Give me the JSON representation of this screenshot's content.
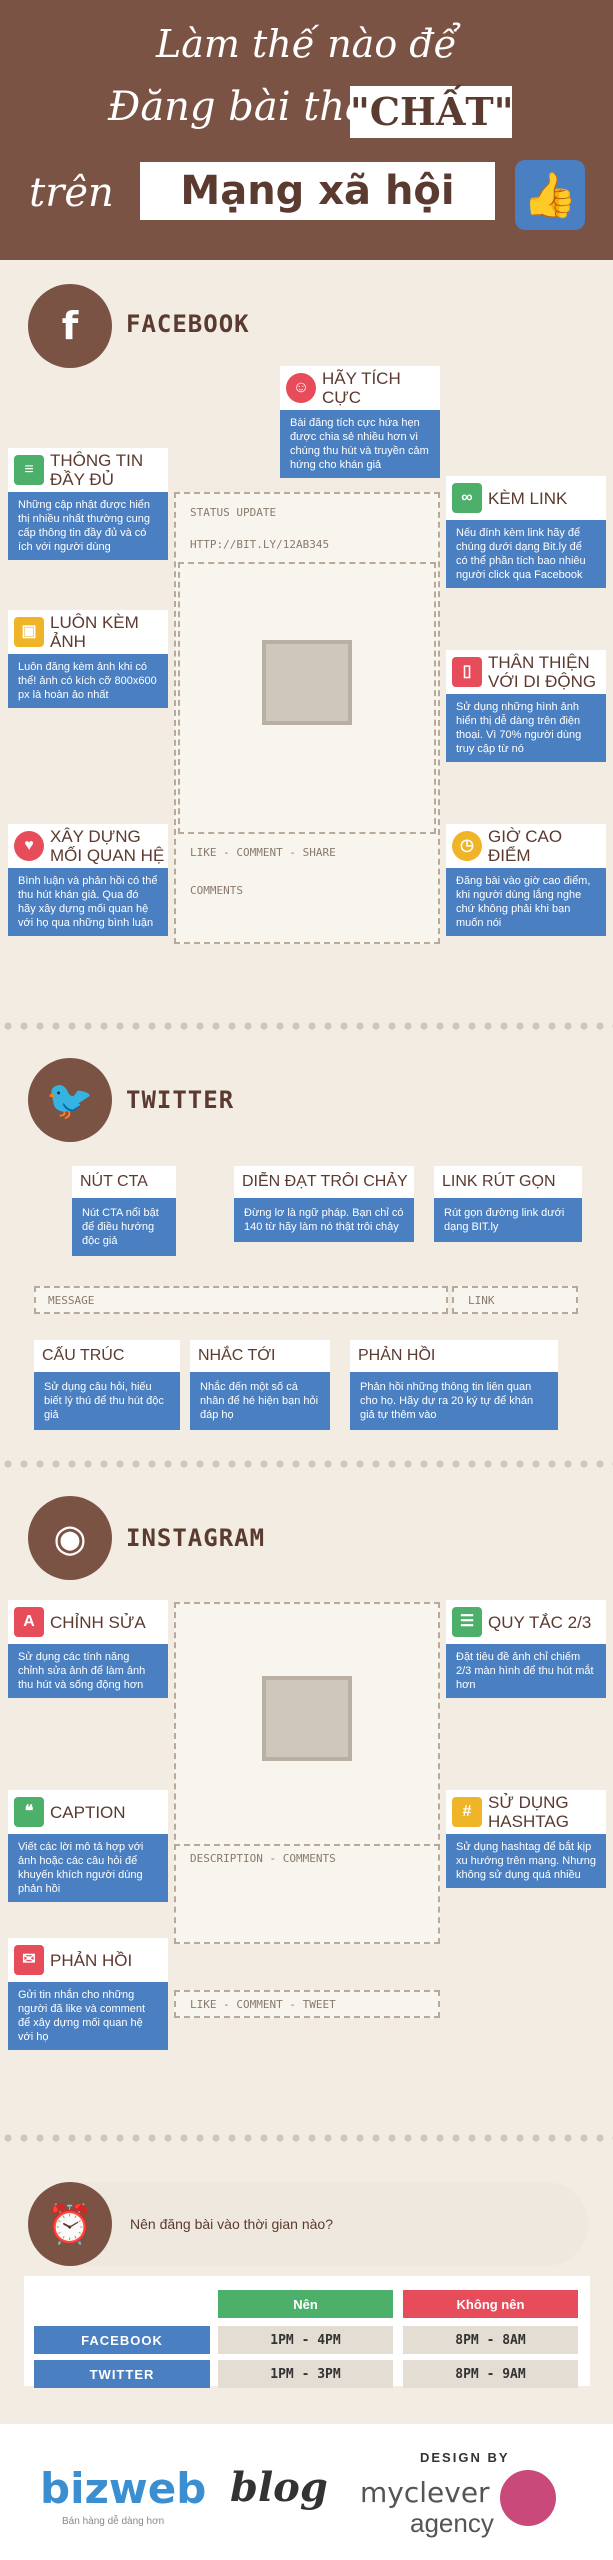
{
  "header": {
    "line1": "Làm thế nào để",
    "line2": "Đăng bài thật",
    "highlight": "\"CHẤT\"",
    "line3": "trên",
    "highlight2": "Mạng xã hội"
  },
  "facebook": {
    "title": "FACEBOOK",
    "icon": "f",
    "post": {
      "status": "STATUS UPDATE",
      "link": "HTTP://BIT.LY/12AB345",
      "actions": "LIKE - COMMENT - SHARE",
      "comments": "COMMENTS"
    },
    "cards": [
      {
        "title": "HÃY TÍCH CỰC",
        "body": "Bài đăng tích cực hứa hẹn được chia sẻ nhiều hơn vì chúng thu hút và truyền cảm hứng cho khán giả",
        "icon": "smile-icon",
        "color": "#e74c5b"
      },
      {
        "title": "THÔNG TIN ĐẦY ĐỦ",
        "body": "Những cập nhật được hiển thị nhiều nhất thường cung cấp thông tin đầy đủ và có ích với người dùng",
        "icon": "document-icon",
        "color": "#4caf6a"
      },
      {
        "title": "KÈM LINK",
        "body": "Nếu đính kèm link hãy để chúng dưới dạng Bit.ly để có thể phần tích bao nhiêu người click qua Facebook",
        "icon": "link-icon",
        "color": "#4caf6a"
      },
      {
        "title": "LUÔN KÈM ẢNH",
        "body": "Luôn đăng kèm ảnh khi có thể! ảnh có kích cỡ 800x600 px là hoàn ảo nhất",
        "icon": "image-icon",
        "color": "#f0b429"
      },
      {
        "title": "THÂN THIỆN VỚI DI ĐỘNG",
        "body": "Sử dụng những hình ảnh hiển thị dễ dàng trên điện thoại. Vì 70% người dùng truy cập từ nó",
        "icon": "mobile-icon",
        "color": "#e74c5b"
      },
      {
        "title": "XÂY DỰNG MỐI QUAN HỆ",
        "body": "Bình luận và phản hồi có thể thu hút khán giả. Qua đó hãy xây dựng mối quan hệ với họ qua những bình luận",
        "icon": "heart-icon",
        "color": "#e74c5b"
      },
      {
        "title": "GIỜ CAO ĐIỂM",
        "body": "Đăng bài vào giờ cao điểm, khi người dùng lắng nghe chứ không phải khi bạn muốn nói",
        "icon": "clock-icon",
        "color": "#f0b429"
      }
    ]
  },
  "twitter": {
    "title": "TWITTER",
    "icon": "bird",
    "message": "MESSAGE",
    "link": "LINK",
    "cards": [
      {
        "title": "NÚT CTA",
        "body": "Nút CTA nổi bật để điều hướng độc giả"
      },
      {
        "title": "DIỄN ĐẠT TRÔI CHẢY",
        "body": "Đừng lơ là ngữ pháp. Bạn chỉ có 140 từ hãy làm nó thật trôi chảy"
      },
      {
        "title": "LINK RÚT GỌN",
        "body": "Rút gọn đường link dưới dạng BIT.ly"
      },
      {
        "title": "CẤU TRÚC",
        "body": "Sử dụng câu hỏi, hiếu biết lý thú để thu hút độc giả"
      },
      {
        "title": "NHẮC TỚI",
        "body": "Nhắc đến một số cá nhân để hé hiện bạn hỏi đáp họ"
      },
      {
        "title": "PHẢN HỒI",
        "body": "Phản hồi những thông tin liên quan cho họ. Hãy dự ra 20 ký tự để khán giả tự thêm vào"
      }
    ]
  },
  "instagram": {
    "title": "INSTAGRAM",
    "icon": "camera-icon",
    "post": {
      "description": "DESCRIPTION - COMMENTS",
      "actions": "LIKE - COMMENT - TWEET"
    },
    "cards": [
      {
        "title": "CHỈNH SỬA",
        "body": "Sử dụng các tính năng chỉnh sửa ảnh để làm ảnh thu hút và sống động hơn",
        "icon": "edit-icon",
        "color": "#e74c5b"
      },
      {
        "title": "QUY TẮC 2/3",
        "body": "Đặt tiêu đề ảnh chỉ chiếm 2/3 màn hình để thu hút mắt hơn",
        "icon": "grid-icon",
        "color": "#4caf6a"
      },
      {
        "title": "CAPTION",
        "body": "Viết các lời mô tả hợp với ảnh hoặc các câu hỏi để khuyến khích người dùng phản hồi",
        "icon": "quote-icon",
        "color": "#4caf6a"
      },
      {
        "title": "SỬ DỤNG HASHTAG",
        "body": "Sử dụng hashtag để bắt kịp xu hướng trên mạng. Nhưng không sử dụng quá nhiều",
        "icon": "hashtag-icon",
        "color": "#f0b429"
      },
      {
        "title": "PHẢN HỒI",
        "body": "Gửi tin nhắn cho những người đã like và comment để xây dựng mối quan hệ với họ",
        "icon": "mail-icon",
        "color": "#e74c5b"
      }
    ]
  },
  "timing": {
    "question": "Nên đăng bài vào thời gian nào?",
    "headers": [
      "Nên",
      "Không nên"
    ],
    "rows": [
      {
        "platform": "FACEBOOK",
        "should": "1PM - 4PM",
        "shouldnt": "8PM - 8AM"
      },
      {
        "platform": "TWITTER",
        "should": "1PM - 3PM",
        "shouldnt": "8PM - 9AM"
      }
    ]
  },
  "footer": {
    "brand": "bizweb",
    "brand2": "blog",
    "tagline": "Bán hàng dễ dàng hơn",
    "design_by": "DESIGN BY",
    "agency": "myclever",
    "agency2": "agency"
  }
}
